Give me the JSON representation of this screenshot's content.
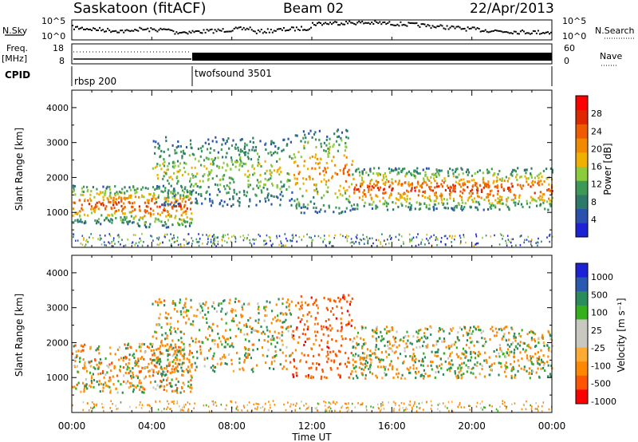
{
  "header": {
    "station": "Saskatoon (fitACF)",
    "beam": "Beam 02",
    "date": "22/Apr/2013"
  },
  "panels": {
    "noise": {
      "left_label": "N.Sky",
      "right_label": "N.Search",
      "ticks_left": [
        "10^5",
        "10^0"
      ],
      "ticks_right": [
        "10^5",
        "10^0"
      ]
    },
    "freq": {
      "left_label_1": "Freq.",
      "left_label_2": "[MHz]",
      "right_label": "Nave",
      "ticks_left": [
        "18",
        "8"
      ],
      "ticks_right": [
        "60",
        "0"
      ]
    },
    "cpid": {
      "label": "CPID",
      "programs": [
        "rbsp 200",
        "twofsound 3501"
      ]
    }
  },
  "colors": {
    "power": [
      "#1e22d6",
      "#2a50b0",
      "#2e7a6a",
      "#3c9a56",
      "#8ccb3c",
      "#f0b000",
      "#f08a00",
      "#f05a00",
      "#e02800",
      "#ff0000"
    ],
    "velocity": [
      "#ff0000",
      "#ff5500",
      "#ff8800",
      "#ffaa33",
      "#c8c8c0",
      "#c8c8c0",
      "#33b01c",
      "#2a8c5a",
      "#2a5ab0",
      "#1e22d6"
    ]
  },
  "chart_data": [
    {
      "type": "heatmap",
      "title": "",
      "xlabel": "Time UT",
      "ylabel": "Slant Range [km]",
      "x_ticks": [
        "00:00",
        "04:00",
        "08:00",
        "12:00",
        "16:00",
        "20:00",
        "00:00"
      ],
      "x_range_hours": [
        0,
        24
      ],
      "ylim": [
        0,
        4500
      ],
      "y_ticks": [
        1000,
        2000,
        3000,
        4000
      ],
      "colorbar": {
        "label": "Power [dB]",
        "range": [
          0,
          32
        ],
        "ticks": [
          4,
          8,
          12,
          16,
          20,
          24,
          28
        ]
      },
      "scatter_bands": [
        {
          "t_start": 0.0,
          "t_end": 3.0,
          "range_low": 700,
          "range_high": 1800,
          "peak_power_db": 28
        },
        {
          "t_start": 3.0,
          "t_end": 6.0,
          "range_low": 600,
          "range_high": 1800,
          "peak_power_db": 28
        },
        {
          "t_start": 4.0,
          "t_end": 11.0,
          "range_low": 1200,
          "range_high": 3200,
          "peak_power_db": 16
        },
        {
          "t_start": 11.0,
          "t_end": 14.0,
          "range_low": 1000,
          "range_high": 3400,
          "peak_power_db": 24
        },
        {
          "t_start": 14.0,
          "t_end": 24.0,
          "range_low": 1100,
          "range_high": 2300,
          "peak_power_db": 28
        }
      ]
    },
    {
      "type": "heatmap",
      "title": "",
      "xlabel": "Time UT",
      "ylabel": "Slant Range [km]",
      "x_ticks": [
        "00:00",
        "04:00",
        "08:00",
        "12:00",
        "16:00",
        "20:00",
        "00:00"
      ],
      "x_range_hours": [
        0,
        24
      ],
      "ylim": [
        0,
        4500
      ],
      "y_ticks": [
        1000,
        2000,
        3000,
        4000
      ],
      "colorbar": {
        "label": "Velocity [m s⁻¹]",
        "ticks": [
          "1000",
          "500",
          "100",
          "25",
          "-25",
          "-100",
          "-500",
          "-1000"
        ]
      },
      "scatter_bands": [
        {
          "t_start": 0.0,
          "t_end": 6.0,
          "range_low": 600,
          "range_high": 2000,
          "velocity": -100
        },
        {
          "t_start": 4.0,
          "t_end": 11.0,
          "range_low": 1200,
          "range_high": 3300,
          "velocity": -25
        },
        {
          "t_start": 11.0,
          "t_end": 14.0,
          "range_low": 1000,
          "range_high": 3400,
          "velocity": -500
        },
        {
          "t_start": 14.0,
          "t_end": 24.0,
          "range_low": 1000,
          "range_high": 2500,
          "velocity": 0
        }
      ]
    }
  ]
}
